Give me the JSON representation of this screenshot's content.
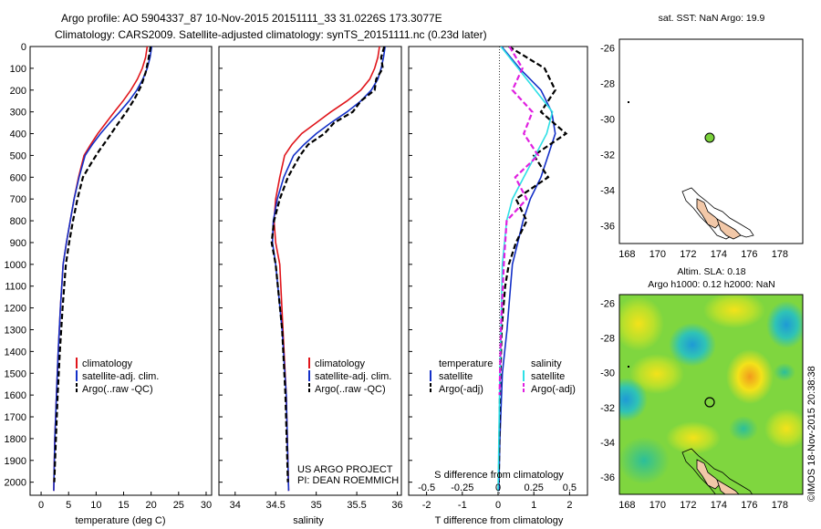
{
  "header": {
    "title_line1": "Argo profile: AO 5904337_87 10-Nov-2015 20151111_33 31.0226S 173.3077E",
    "title_line2": "Climatology: CARS2009. Satellite-adjusted climatology: synTS_20151111.nc (0.23d later)"
  },
  "colors": {
    "climatology": "#e0151b",
    "satellite": "#1430c8",
    "argo": "#000000",
    "salinity_satellite": "#2ee0e6",
    "salinity_argo": "#e020e0",
    "land": "#f2c8a8",
    "marker": "#7ad13a"
  },
  "chart_data": [
    {
      "type": "line",
      "name": "temperature-panel",
      "xlabel": "temperature (deg C)",
      "ylabel": "",
      "xlim": [
        -2,
        31
      ],
      "ylim": [
        2060,
        0
      ],
      "xticks": [
        "0",
        "5",
        "10",
        "15",
        "20",
        "25",
        "30"
      ],
      "yticks": [
        "0",
        "100",
        "200",
        "300",
        "400",
        "500",
        "600",
        "700",
        "800",
        "900",
        "1000",
        "1100",
        "1200",
        "1300",
        "1400",
        "1500",
        "1600",
        "1700",
        "1800",
        "1900",
        "2000"
      ],
      "legend": [
        "climatology",
        "satellite-adj. clim.",
        "Argo(..raw -QC)"
      ],
      "series": [
        {
          "name": "climatology",
          "style": "solid",
          "color": "#e0151b",
          "x": [
            19.3,
            19.0,
            18.4,
            17.5,
            16.3,
            14.9,
            13.3,
            11.8,
            10.3,
            9.0,
            7.8,
            6.8,
            6.0,
            5.3,
            4.6,
            4.0,
            3.5,
            3.1,
            2.8,
            2.5,
            2.3
          ],
          "y": [
            0,
            50,
            100,
            150,
            200,
            250,
            300,
            350,
            400,
            450,
            500,
            600,
            700,
            800,
            900,
            1000,
            1200,
            1400,
            1600,
            1800,
            2040
          ]
        },
        {
          "name": "satellite-adj. clim.",
          "style": "solid",
          "color": "#1430c8",
          "x": [
            20.1,
            19.8,
            19.3,
            18.5,
            17.4,
            16.0,
            14.3,
            12.5,
            10.8,
            9.3,
            8.0,
            6.9,
            6.0,
            5.3,
            4.6,
            4.0,
            3.5,
            3.1,
            2.8,
            2.5,
            2.3
          ],
          "y": [
            0,
            50,
            100,
            150,
            200,
            250,
            300,
            350,
            400,
            450,
            500,
            600,
            700,
            800,
            900,
            1000,
            1200,
            1400,
            1600,
            1800,
            2040
          ]
        },
        {
          "name": "Argo(..raw -QC)",
          "style": "dashed",
          "color": "#000000",
          "x": [
            19.9,
            19.5,
            19.0,
            18.2,
            17.0,
            15.5,
            13.8,
            12.2,
            10.5,
            9.0,
            7.6,
            6.6,
            5.8,
            5.1,
            4.5,
            3.9,
            3.4,
            3.0,
            2.7,
            2.4
          ],
          "y": [
            0,
            60,
            120,
            180,
            240,
            300,
            360,
            420,
            480,
            540,
            600,
            700,
            800,
            900,
            1000,
            1200,
            1400,
            1600,
            1800,
            2000
          ]
        }
      ]
    },
    {
      "type": "line",
      "name": "salinity-panel",
      "xlabel": "salinity",
      "ylabel": "",
      "xlim": [
        33.8,
        36.05
      ],
      "ylim": [
        2060,
        0
      ],
      "xticks": [
        "34",
        "34.5",
        "35",
        "35.5",
        "36"
      ],
      "legend": [
        "climatology",
        "satellite-adj. clim.",
        "Argo(..raw -QC)"
      ],
      "annotation": [
        "US ARGO PROJECT",
        "PI: DEAN ROEMMICH"
      ],
      "series": [
        {
          "name": "climatology",
          "style": "solid",
          "color": "#e0151b",
          "x": [
            35.78,
            35.76,
            35.72,
            35.66,
            35.55,
            35.38,
            35.18,
            35.0,
            34.82,
            34.7,
            34.61,
            34.55,
            34.5,
            34.48,
            34.5,
            34.55,
            34.59,
            34.63,
            34.66
          ],
          "y": [
            0,
            50,
            100,
            150,
            200,
            250,
            300,
            350,
            400,
            450,
            500,
            600,
            700,
            800,
            900,
            1000,
            1300,
            1600,
            2040
          ]
        },
        {
          "name": "satellite-adj. clim.",
          "style": "solid",
          "color": "#1430c8",
          "x": [
            35.85,
            35.83,
            35.8,
            35.76,
            35.68,
            35.55,
            35.38,
            35.18,
            35.0,
            34.85,
            34.72,
            34.6,
            34.52,
            34.47,
            34.46,
            34.5,
            34.58,
            34.63,
            34.66
          ],
          "y": [
            0,
            50,
            100,
            150,
            200,
            250,
            300,
            350,
            400,
            450,
            500,
            600,
            700,
            800,
            900,
            1000,
            1300,
            1600,
            2040
          ]
        },
        {
          "name": "Argo(..raw -QC)",
          "style": "dashed",
          "color": "#000000",
          "x": [
            35.84,
            35.8,
            35.82,
            35.74,
            35.72,
            35.55,
            35.45,
            35.22,
            35.1,
            34.9,
            34.8,
            34.65,
            34.55,
            34.48,
            34.45,
            34.5,
            34.58,
            34.62,
            34.65
          ],
          "y": [
            0,
            50,
            100,
            150,
            200,
            250,
            300,
            350,
            400,
            450,
            500,
            600,
            700,
            800,
            900,
            1000,
            1300,
            1600,
            2000
          ]
        }
      ]
    },
    {
      "type": "line",
      "name": "difference-panel",
      "xlabel": "T difference from climatology",
      "xlabel2": "S difference from climatology",
      "xlim": [
        -2.5,
        2.5
      ],
      "ylim": [
        2060,
        0
      ],
      "xticks": [
        "-2",
        "-1",
        "0",
        "1",
        "2"
      ],
      "xticks2": [
        "-0.5",
        "-0.25",
        "0",
        "0.25",
        "0.5"
      ],
      "legend_temperature": [
        "temperature",
        "satellite",
        "Argo(-adj)"
      ],
      "legend_salinity": [
        "salinity",
        "satellite",
        "Argo(-adj)"
      ],
      "series": [
        {
          "name": "satellite",
          "group": "temperature",
          "style": "solid",
          "color": "#1430c8",
          "x": [
            0.1,
            0.6,
            1.2,
            1.5,
            1.6,
            1.4,
            1.2,
            0.9,
            0.7,
            0.55,
            0.4,
            0.35,
            0.25,
            0.12,
            0.05,
            0.02
          ],
          "y": [
            0,
            100,
            200,
            300,
            400,
            500,
            600,
            700,
            800,
            900,
            1000,
            1100,
            1300,
            1500,
            1800,
            2040
          ]
        },
        {
          "name": "Argo(-adj)",
          "group": "temperature",
          "style": "dashed",
          "color": "#000000",
          "x": [
            0.3,
            1.3,
            1.6,
            1.2,
            1.9,
            1.0,
            1.4,
            0.5,
            0.8,
            0.5,
            0.3,
            0.2,
            0.1,
            0.05,
            0.02
          ],
          "y": [
            0,
            100,
            200,
            300,
            400,
            500,
            600,
            700,
            800,
            900,
            1000,
            1100,
            1300,
            1600,
            2000
          ]
        },
        {
          "name": "satellite",
          "group": "salinity",
          "style": "solid",
          "color": "#2ee0e6",
          "x": [
            0.02,
            0.14,
            0.26,
            0.38,
            0.34,
            0.26,
            0.18,
            0.1,
            0.06,
            0.03,
            0.02,
            0.01,
            0.0
          ],
          "y": [
            0,
            100,
            200,
            300,
            400,
            500,
            600,
            700,
            800,
            1000,
            1300,
            1600,
            2040
          ]
        },
        {
          "name": "Argo(-adj)",
          "group": "salinity",
          "style": "dashed",
          "color": "#e020e0",
          "x": [
            0.08,
            0.17,
            0.1,
            0.24,
            0.18,
            0.28,
            0.12,
            0.2,
            0.06,
            0.04,
            0.02,
            0.01
          ],
          "y": [
            0,
            100,
            200,
            300,
            400,
            500,
            600,
            700,
            800,
            1000,
            1300,
            1600
          ]
        }
      ]
    },
    {
      "type": "scatter",
      "name": "sst-map",
      "title": "sat. SST: NaN Argo: 19.9",
      "xlim": [
        167.5,
        179.5
      ],
      "ylim": [
        -37,
        -25.5
      ],
      "xticks": [
        "168",
        "170",
        "172",
        "174",
        "176",
        "178"
      ],
      "yticks": [
        "-26",
        "-28",
        "-30",
        "-32",
        "-34",
        "-36"
      ],
      "points": [
        {
          "x": 173.3,
          "y": -31.0
        }
      ]
    },
    {
      "type": "heatmap",
      "name": "sla-map",
      "title_line1": "Altim. SLA: 0.18",
      "title_line2": "Argo h1000: 0.12 h2000: NaN",
      "xlim": [
        167.5,
        179.5
      ],
      "ylim": [
        -37,
        -25.5
      ],
      "xticks": [
        "168",
        "170",
        "172",
        "174",
        "176",
        "178"
      ],
      "yticks": [
        "-26",
        "-28",
        "-30",
        "-32",
        "-34",
        "-36"
      ],
      "points": [
        {
          "x": 173.3,
          "y": -31.0
        }
      ]
    }
  ],
  "footer": {
    "stamp": "©IMOS 18-Nov-2015 20:38:38"
  }
}
